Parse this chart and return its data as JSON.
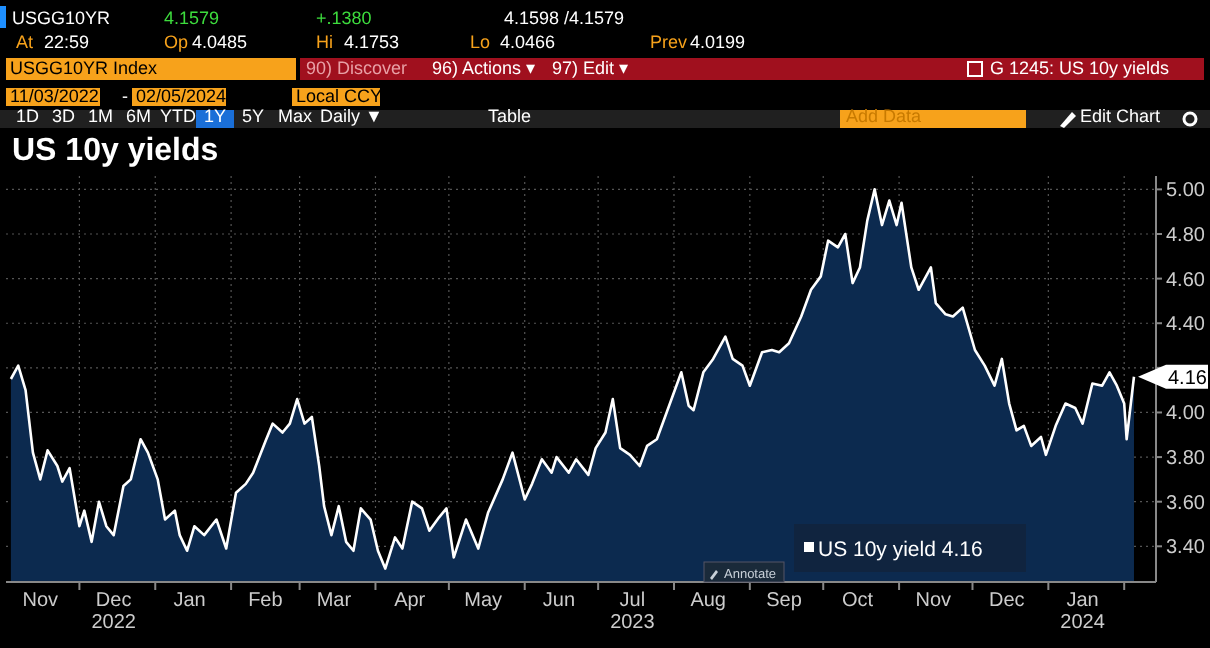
{
  "chart_data": {
    "type": "area",
    "title": "US 10y yields",
    "xlim": [
      "2022-11-01",
      "2024-02-14"
    ],
    "xticks": [
      {
        "value": "2022-12-01",
        "label": null
      },
      {
        "value": "2023-01-01",
        "label": null
      },
      {
        "value": "2023-02-01",
        "label": null
      },
      {
        "value": "2023-03-01",
        "label": null
      },
      {
        "value": "2023-04-01",
        "label": null
      },
      {
        "value": "2023-05-01",
        "label": null
      },
      {
        "value": "2023-06-01",
        "label": null
      },
      {
        "value": "2023-07-01",
        "label": null
      },
      {
        "value": "2023-08-01",
        "label": null
      },
      {
        "value": "2023-09-01",
        "label": null
      },
      {
        "value": "2023-10-01",
        "label": null
      },
      {
        "value": "2023-11-01",
        "label": null
      },
      {
        "value": "2023-12-01",
        "label": null
      },
      {
        "value": "2024-01-01",
        "label": null
      },
      {
        "value": "2024-02-01",
        "label": null
      },
      {
        "value": "2022-11-15",
        "label": "Nov"
      },
      {
        "value": "2022-12-15",
        "label": "Dec\n2022"
      },
      {
        "value": "2023-01-15",
        "label": "Jan"
      },
      {
        "value": "2023-02-15",
        "label": "Feb"
      },
      {
        "value": "2023-03-15",
        "label": "Mar"
      },
      {
        "value": "2023-04-15",
        "label": "Apr"
      },
      {
        "value": "2023-05-15",
        "label": "May"
      },
      {
        "value": "2023-06-15",
        "label": "Jun"
      },
      {
        "value": "2023-07-15",
        "label": "Jul\n2023"
      },
      {
        "value": "2023-08-15",
        "label": "Aug"
      },
      {
        "value": "2023-09-15",
        "label": "Sep"
      },
      {
        "value": "2023-10-15",
        "label": "Oct"
      },
      {
        "value": "2023-11-15",
        "label": "Nov"
      },
      {
        "value": "2023-12-15",
        "label": "Dec"
      },
      {
        "value": "2024-01-15",
        "label": "Jan\n2024"
      }
    ],
    "ylim": [
      3.24,
      5.06
    ],
    "yticks": [
      {
        "value": 3.4,
        "label": "3.40"
      },
      {
        "value": 3.6,
        "label": "3.60"
      },
      {
        "value": 3.8,
        "label": "3.80"
      },
      {
        "value": 4.0,
        "label": "4.00"
      },
      {
        "value": 4.2,
        "label": null
      },
      {
        "value": 4.4,
        "label": "4.40"
      },
      {
        "value": 4.6,
        "label": "4.60"
      },
      {
        "value": 4.8,
        "label": "4.80"
      },
      {
        "value": 5.0,
        "label": "5.00"
      }
    ],
    "grid": true,
    "legend": "bottom",
    "series": [
      {
        "name": "US 10y yield 4.16",
        "color": "#ffffff",
        "x": [
          "2022-11-03",
          "2022-11-06",
          "2022-11-09",
          "2022-11-12",
          "2022-11-15",
          "2022-11-18",
          "2022-11-22",
          "2022-11-24",
          "2022-11-27",
          "2022-12-01",
          "2022-12-03",
          "2022-12-06",
          "2022-12-09",
          "2022-12-12",
          "2022-12-15",
          "2022-12-19",
          "2022-12-22",
          "2022-12-26",
          "2022-12-29",
          "2023-01-02",
          "2023-01-05",
          "2023-01-09",
          "2023-01-11",
          "2023-01-14",
          "2023-01-17",
          "2023-01-21",
          "2023-01-26",
          "2023-01-30",
          "2023-02-03",
          "2023-02-07",
          "2023-02-10",
          "2023-02-15",
          "2023-02-18",
          "2023-02-22",
          "2023-02-25",
          "2023-02-28",
          "2023-03-03",
          "2023-03-06",
          "2023-03-09",
          "2023-03-11",
          "2023-03-14",
          "2023-03-17",
          "2023-03-20",
          "2023-03-23",
          "2023-03-26",
          "2023-03-30",
          "2023-04-02",
          "2023-04-05",
          "2023-04-09",
          "2023-04-12",
          "2023-04-16",
          "2023-04-20",
          "2023-04-23",
          "2023-04-27",
          "2023-04-30",
          "2023-05-03",
          "2023-05-08",
          "2023-05-13",
          "2023-05-17",
          "2023-05-23",
          "2023-05-27",
          "2023-06-01",
          "2023-06-04",
          "2023-06-08",
          "2023-06-12",
          "2023-06-14",
          "2023-06-19",
          "2023-06-22",
          "2023-06-27",
          "2023-06-30",
          "2023-07-04",
          "2023-07-07",
          "2023-07-10",
          "2023-07-14",
          "2023-07-18",
          "2023-07-21",
          "2023-07-25",
          "2023-07-29",
          "2023-08-04",
          "2023-08-07",
          "2023-08-09",
          "2023-08-13",
          "2023-08-17",
          "2023-08-22",
          "2023-08-25",
          "2023-08-29",
          "2023-09-01",
          "2023-09-06",
          "2023-09-10",
          "2023-09-13",
          "2023-09-17",
          "2023-09-22",
          "2023-09-26",
          "2023-09-30",
          "2023-10-03",
          "2023-10-07",
          "2023-10-10",
          "2023-10-13",
          "2023-10-16",
          "2023-10-19",
          "2023-10-22",
          "2023-10-25",
          "2023-10-28",
          "2023-10-31",
          "2023-11-02",
          "2023-11-06",
          "2023-11-09",
          "2023-11-14",
          "2023-11-16",
          "2023-11-20",
          "2023-11-23",
          "2023-11-27",
          "2023-12-02",
          "2023-12-06",
          "2023-12-10",
          "2023-12-13",
          "2023-12-16",
          "2023-12-19",
          "2023-12-22",
          "2023-12-25",
          "2023-12-29",
          "2023-12-31",
          "2024-01-04",
          "2024-01-08",
          "2024-01-12",
          "2024-01-15",
          "2024-01-19",
          "2024-01-23",
          "2024-01-26",
          "2024-01-29",
          "2024-02-01",
          "2024-02-02",
          "2024-02-05"
        ],
        "values": [
          4.15,
          4.21,
          4.1,
          3.82,
          3.7,
          3.83,
          3.76,
          3.69,
          3.75,
          3.49,
          3.56,
          3.42,
          3.6,
          3.49,
          3.45,
          3.67,
          3.7,
          3.88,
          3.82,
          3.7,
          3.52,
          3.56,
          3.45,
          3.38,
          3.49,
          3.45,
          3.52,
          3.39,
          3.64,
          3.68,
          3.73,
          3.87,
          3.95,
          3.91,
          3.95,
          4.06,
          3.95,
          3.98,
          3.76,
          3.58,
          3.45,
          3.58,
          3.42,
          3.38,
          3.57,
          3.52,
          3.38,
          3.3,
          3.44,
          3.39,
          3.6,
          3.57,
          3.47,
          3.53,
          3.57,
          3.35,
          3.52,
          3.39,
          3.55,
          3.7,
          3.82,
          3.61,
          3.68,
          3.79,
          3.73,
          3.8,
          3.73,
          3.79,
          3.72,
          3.84,
          3.91,
          4.06,
          3.84,
          3.81,
          3.76,
          3.85,
          3.88,
          4.0,
          4.18,
          4.03,
          4.01,
          4.18,
          4.24,
          4.34,
          4.24,
          4.21,
          4.12,
          4.27,
          4.28,
          4.27,
          4.31,
          4.43,
          4.55,
          4.61,
          4.77,
          4.74,
          4.8,
          4.58,
          4.65,
          4.86,
          5.0,
          4.84,
          4.95,
          4.84,
          4.94,
          4.65,
          4.55,
          4.65,
          4.49,
          4.44,
          4.43,
          4.47,
          4.28,
          4.21,
          4.12,
          4.24,
          4.04,
          3.92,
          3.94,
          3.85,
          3.89,
          3.81,
          3.94,
          4.04,
          4.02,
          3.95,
          4.13,
          4.12,
          4.18,
          4.12,
          4.04,
          3.88,
          4.16
        ]
      }
    ],
    "annotations": [
      {
        "text": "4.16",
        "x": "2024-02-05",
        "y": 4.16
      },
      "USGG10YR",
      "4.1579",
      "+.1380",
      "4.1598 /4.1579",
      "At",
      "22:59",
      "Op",
      "4.0485",
      "Hi",
      "4.1753",
      "Lo",
      "4.0466",
      "Prev",
      "4.0199",
      "USGG10YR Index",
      "90) Discover",
      "96) Actions ▾",
      "97) Edit ▾",
      "G 1245: US 10y yields",
      "11/03/2022",
      "-",
      "02/05/2024",
      "Local CCY",
      "1D",
      "3D",
      "1M",
      "6M",
      "YTD",
      "1Y",
      "5Y",
      "Max",
      "Daily ▼",
      "Table",
      "Add Data",
      "Edit Chart",
      "Annotate"
    ]
  }
}
